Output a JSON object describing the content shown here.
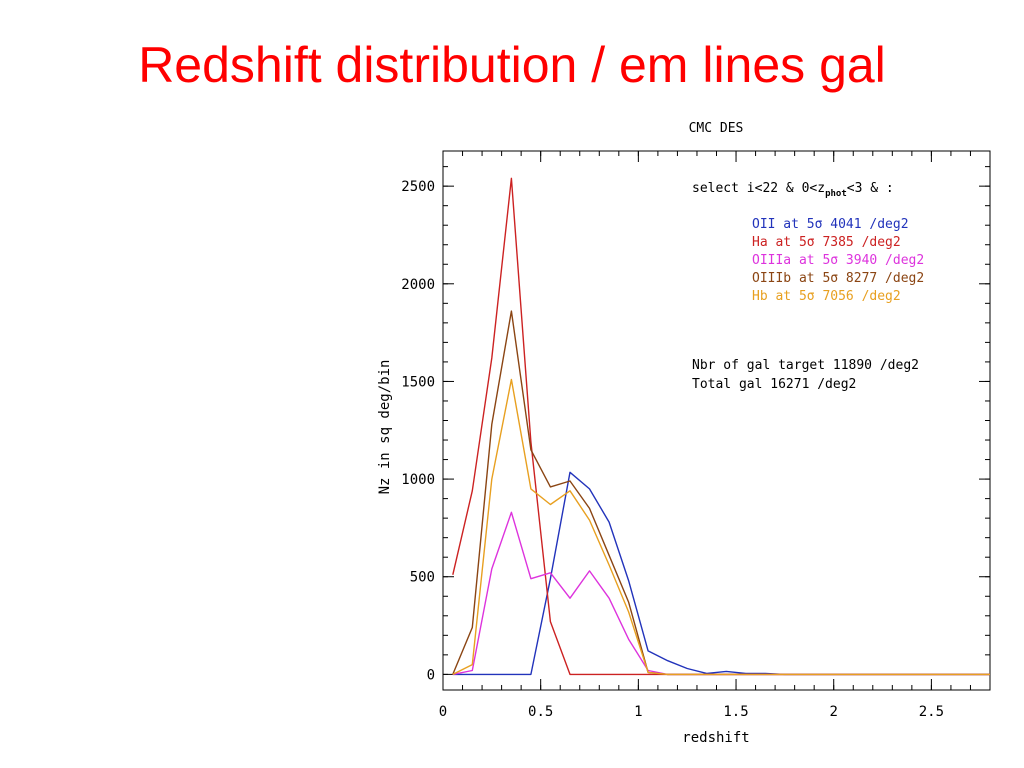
{
  "slide": {
    "title": "Redshift distribution / em lines gal"
  },
  "chart_data": {
    "type": "line",
    "title": "CMC DES",
    "xlabel": "redshift",
    "ylabel": "Nz in sq deg/bin",
    "xlim": [
      0,
      2.8
    ],
    "ylim": [
      -80,
      2680
    ],
    "xticks": [
      "0",
      "0.5",
      "1",
      "1.5",
      "2",
      "2.5"
    ],
    "xtick_values": [
      0,
      0.5,
      1,
      1.5,
      2,
      2.5
    ],
    "yticks": [
      "0",
      "500",
      "1000",
      "1500",
      "2000",
      "2500"
    ],
    "ytick_values": [
      0,
      500,
      1000,
      1500,
      2000,
      2500
    ],
    "grid": false,
    "annotations": {
      "select_prefix": "select i<22 & 0<z",
      "select_sub": "phot",
      "select_suffix": "<3 & :",
      "target": "Nbr of gal target 11890 /deg2",
      "total": "Total gal 16271 /deg2"
    },
    "series": [
      {
        "name": "OII at 5σ 4041 /deg2",
        "color": "#2233bb",
        "x": [
          0.05,
          0.15,
          0.25,
          0.35,
          0.45,
          0.55,
          0.65,
          0.75,
          0.85,
          0.95,
          1.05,
          1.15,
          1.25,
          1.35,
          1.45,
          1.55,
          1.65,
          1.75,
          2.8
        ],
        "y": [
          0,
          0,
          0,
          0,
          0,
          490,
          1035,
          950,
          780,
          480,
          120,
          70,
          30,
          5,
          15,
          5,
          5,
          0,
          0
        ]
      },
      {
        "name": "Ha at 5σ 7385 /deg2",
        "color": "#cc2222",
        "x": [
          0.05,
          0.15,
          0.25,
          0.35,
          0.45,
          0.55,
          0.65,
          0.75,
          2.8
        ],
        "y": [
          510,
          940,
          1620,
          2540,
          1190,
          270,
          0,
          0,
          0
        ]
      },
      {
        "name": "OIIIa at 5σ 3940 /deg2",
        "color": "#dd33dd",
        "x": [
          0.05,
          0.15,
          0.25,
          0.35,
          0.45,
          0.55,
          0.65,
          0.75,
          0.85,
          0.95,
          1.05,
          1.15,
          2.8
        ],
        "y": [
          0,
          20,
          540,
          830,
          490,
          520,
          390,
          530,
          390,
          180,
          20,
          0,
          0
        ]
      },
      {
        "name": "OIIIb at 5σ 8277 /deg2",
        "color": "#8b4513",
        "x": [
          0.05,
          0.15,
          0.25,
          0.35,
          0.45,
          0.55,
          0.65,
          0.75,
          0.85,
          0.95,
          1.05,
          1.15,
          2.8
        ],
        "y": [
          0,
          240,
          1280,
          1860,
          1150,
          960,
          990,
          850,
          610,
          370,
          10,
          0,
          0
        ]
      },
      {
        "name": "Hb at 5σ 7056 /deg2",
        "color": "#e8a020",
        "x": [
          0.05,
          0.15,
          0.25,
          0.35,
          0.45,
          0.55,
          0.65,
          0.75,
          0.85,
          0.95,
          1.05,
          1.15,
          2.8
        ],
        "y": [
          0,
          50,
          1000,
          1510,
          950,
          870,
          940,
          790,
          560,
          320,
          10,
          0,
          0
        ]
      }
    ]
  }
}
